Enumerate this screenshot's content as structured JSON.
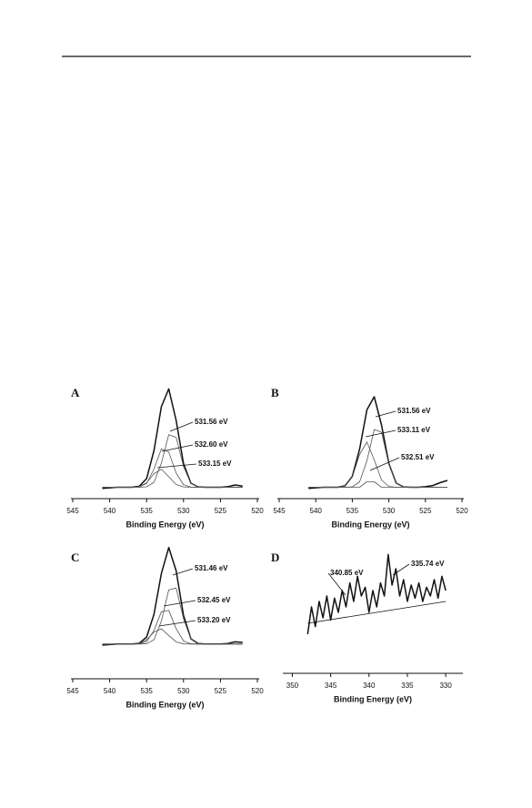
{
  "chart_data": [
    {
      "type": "line",
      "panel_label": "A",
      "xlabel": "Binding Energy (eV)",
      "xlim": [
        545,
        520
      ],
      "xticks": [
        545,
        540,
        535,
        530,
        525,
        520
      ],
      "ylim": [
        0,
        100
      ],
      "x": [
        541,
        540,
        539,
        538,
        537,
        536,
        535,
        534,
        533,
        532,
        531,
        530,
        529,
        528,
        527,
        526,
        525,
        524,
        523,
        522
      ],
      "series": [
        {
          "color": "#111111",
          "values": [
            9,
            9.5,
            10,
            10,
            10,
            10.9,
            17.6,
            42.2,
            80.8,
            96.5,
            68.8,
            30.8,
            13.5,
            10.3,
            10,
            10,
            10,
            10.5,
            12,
            11
          ]
        },
        {
          "color": "#555555",
          "values": [
            10,
            10,
            10,
            10,
            10,
            10,
            10.4,
            14.3,
            31.2,
            56.2,
            53.9,
            28.3,
            13.3,
            10.3,
            10,
            10,
            10,
            10,
            10,
            10
          ]
        },
        {
          "color": "#555555",
          "values": [
            10,
            10,
            10,
            10,
            10,
            10.3,
            13.3,
            26,
            43.7,
            41,
            22.5,
            12.2,
            10.2,
            10,
            10,
            10,
            10,
            10,
            10,
            10
          ]
        },
        {
          "color": "#555555",
          "values": [
            10,
            10,
            10,
            10,
            10,
            10.6,
            13.9,
            21.9,
            25.9,
            19.3,
            12.4,
            10.3,
            10,
            10,
            10,
            10,
            10,
            10,
            10,
            10
          ]
        }
      ],
      "annotations": [
        "531.56 eV",
        "532.60 eV",
        "533.15 eV"
      ]
    },
    {
      "type": "line",
      "panel_label": "B",
      "xlabel": "Binding Energy (eV)",
      "xlim": [
        545,
        520
      ],
      "xticks": [
        545,
        540,
        535,
        530,
        525,
        520
      ],
      "ylim": [
        0,
        100
      ],
      "x": [
        541,
        540,
        539,
        538,
        537,
        536,
        535,
        534,
        533,
        532,
        531,
        530,
        529,
        528,
        527,
        526,
        525,
        524,
        523,
        522
      ],
      "series": [
        {
          "color": "#111111",
          "values": [
            9,
            9.5,
            10,
            10,
            10,
            11.3,
            19.5,
            43.5,
            78.1,
            89.6,
            64.7,
            30.8,
            13.7,
            10.3,
            10,
            10,
            10.5,
            11.5,
            14,
            16
          ]
        },
        {
          "color": "#555555",
          "values": [
            10,
            10,
            10,
            10,
            10,
            10,
            10.4,
            14.7,
            33.3,
            60.8,
            58.3,
            30.1,
            13.7,
            10.3,
            10,
            10,
            10,
            10,
            10,
            10
          ]
        },
        {
          "color": "#555555",
          "values": [
            10,
            10,
            10,
            10,
            10,
            11.3,
            19.1,
            38.8,
            49.8,
            34,
            16.4,
            10.7,
            10,
            10,
            10,
            10,
            10,
            10,
            10,
            10
          ]
        },
        {
          "color": "#555555",
          "values": [
            10,
            10,
            10,
            10,
            10,
            10,
            10,
            10,
            15,
            14.8,
            10,
            10,
            10,
            10,
            10,
            10,
            10,
            10,
            10,
            10
          ]
        }
      ],
      "annotations": [
        "531.56 eV",
        "533.11 eV",
        "532.51 eV"
      ]
    },
    {
      "type": "line",
      "panel_label": "C",
      "xlabel": "Binding Energy (eV)",
      "xlim": [
        545,
        520
      ],
      "xticks": [
        545,
        540,
        535,
        530,
        525,
        520
      ],
      "ylim": [
        0,
        100
      ],
      "x": [
        541,
        540,
        539,
        538,
        537,
        536,
        535,
        534,
        533,
        532,
        531,
        530,
        529,
        528,
        527,
        526,
        525,
        524,
        523,
        522
      ],
      "series": [
        {
          "color": "#111111",
          "values": [
            9,
            9.5,
            10,
            10,
            10,
            10.7,
            16.2,
            36.8,
            73.5,
            96.9,
            76.1,
            35.8,
            14.7,
            10.4,
            10,
            10,
            10,
            10.5,
            12,
            11.5
          ]
        },
        {
          "color": "#555555",
          "values": [
            10,
            10,
            10,
            10,
            10,
            10,
            10.3,
            13.8,
            30.6,
            58.8,
            60.4,
            32.8,
            14.5,
            10.4,
            10,
            10,
            10,
            10,
            10,
            10
          ]
        },
        {
          "color": "#555555",
          "values": [
            10,
            10,
            10,
            10,
            10,
            10.2,
            12.2,
            22.2,
            39.1,
            40.4,
            23.8,
            12.8,
            10.2,
            10,
            10,
            10,
            10,
            10,
            10,
            10
          ]
        },
        {
          "color": "#555555",
          "values": [
            10,
            10,
            10,
            10,
            10,
            10.5,
            13.7,
            20.8,
            23.8,
            17.7,
            11.9,
            10.2,
            10,
            10,
            10,
            10,
            10,
            10,
            10,
            10
          ]
        }
      ],
      "annotations": [
        "531.46 eV",
        "532.45 eV",
        "533.20 eV"
      ]
    },
    {
      "type": "line",
      "panel_label": "D",
      "xlabel": "Binding Energy (eV)",
      "xlim": [
        351,
        328
      ],
      "xticks": [
        350,
        345,
        340,
        335,
        330
      ],
      "ylim": [
        0,
        100
      ],
      "x": [
        348,
        347.5,
        347,
        346.5,
        346,
        345.5,
        345,
        344.5,
        344,
        343.5,
        343,
        342.5,
        342,
        341.5,
        341,
        340.5,
        340,
        339.5,
        339,
        338.5,
        338,
        337.5,
        337,
        336.5,
        336,
        335.5,
        335,
        334.5,
        334,
        333.5,
        333,
        332.5,
        332,
        331.5,
        331,
        330.5,
        330
      ],
      "series": [
        {
          "color": "#111111",
          "values": [
            15,
            40,
            22,
            45,
            30,
            50,
            28,
            48,
            35,
            55,
            40,
            62,
            45,
            68,
            50,
            58,
            35,
            55,
            40,
            62,
            50,
            88,
            60,
            75,
            50,
            65,
            45,
            60,
            48,
            62,
            45,
            58,
            50,
            65,
            48,
            68,
            55
          ]
        },
        {
          "color": "#111111",
          "x": [
            348,
            330
          ],
          "values": [
            25,
            45
          ]
        }
      ],
      "annotations": [
        "340.85 eV",
        "335.74 eV"
      ]
    }
  ]
}
